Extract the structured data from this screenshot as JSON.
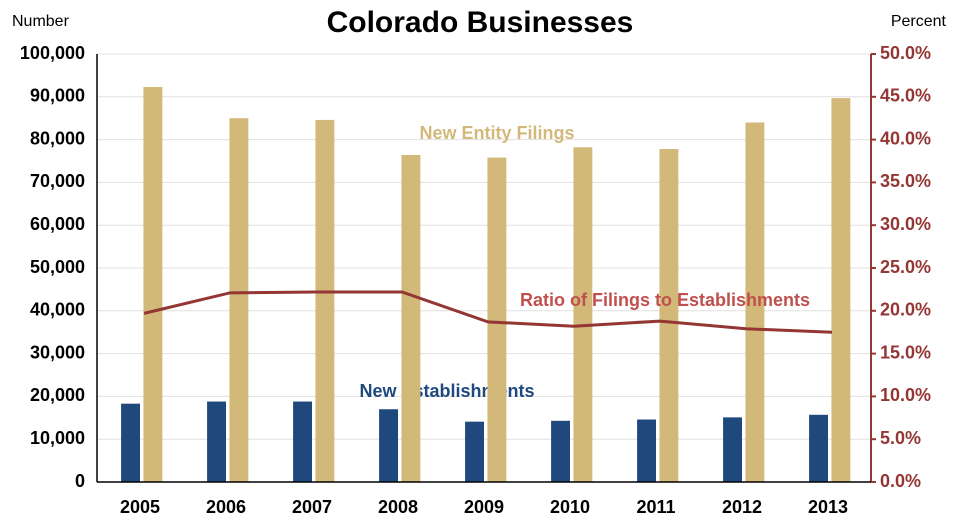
{
  "chart_data": {
    "type": "bar-line",
    "title": "Colorado Businesses",
    "y_label": "Number",
    "y2_label": "Percent",
    "categories": [
      "2005",
      "2006",
      "2007",
      "2008",
      "2009",
      "2010",
      "2011",
      "2012",
      "2013"
    ],
    "series": [
      {
        "name": "New Establishments",
        "type": "bar",
        "color": "#1f497d",
        "values": [
          18300,
          18800,
          18800,
          17000,
          14100,
          14300,
          14600,
          15100,
          15700
        ]
      },
      {
        "name": "New Entity Filings",
        "type": "bar",
        "color": "#d2b97a",
        "values": [
          92300,
          85000,
          84600,
          76400,
          75800,
          78200,
          77800,
          84000,
          89700
        ]
      },
      {
        "name": "Ratio of Filings to Establishments",
        "type": "line",
        "axis": "y2",
        "color": "#943634",
        "values": [
          19.7,
          22.1,
          22.2,
          22.2,
          18.7,
          18.2,
          18.8,
          17.9,
          17.5
        ]
      }
    ],
    "ylim": [
      0,
      100000
    ],
    "yticks": [
      0,
      {
        "value": 10000,
        "label": "10,000"
      },
      {
        "value": 20000,
        "label": "20,000"
      },
      {
        "value": 30000,
        "label": "30,000"
      },
      {
        "value": 40000,
        "label": "40,000"
      },
      {
        "value": 50000,
        "label": "50,000"
      },
      {
        "value": 60000,
        "label": "60,000"
      },
      {
        "value": 70000,
        "label": "70,000"
      },
      {
        "value": 80000,
        "label": "80,000"
      },
      {
        "value": 90000,
        "label": "90,000"
      },
      {
        "value": 100000,
        "label": "100,000"
      }
    ],
    "y2lim": [
      0,
      50
    ],
    "y2ticks": [
      {
        "value": 0,
        "label": "0.0%"
      },
      {
        "value": 5,
        "label": "5.0%"
      },
      {
        "value": 10,
        "label": "10.0%"
      },
      {
        "value": 15,
        "label": "15.0%"
      },
      {
        "value": 20,
        "label": "20.0%"
      },
      {
        "value": 25,
        "label": "25.0%"
      },
      {
        "value": 30,
        "label": "30.0%"
      },
      {
        "value": 35,
        "label": "35.0%"
      },
      {
        "value": 40,
        "label": "40.0%"
      },
      {
        "value": 45,
        "label": "45.0%"
      },
      {
        "value": 50,
        "label": "50.0%"
      }
    ],
    "y2_color": "#943634",
    "grid": true
  }
}
